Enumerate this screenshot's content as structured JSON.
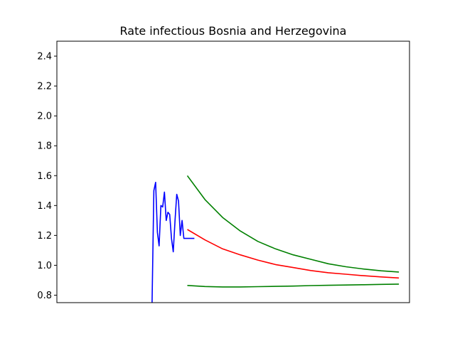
{
  "chart_data": {
    "type": "line",
    "title": "Rate infectious Bosnia and Herzegovina",
    "xlabel": "",
    "ylabel": "",
    "xlim": [
      0,
      100
    ],
    "ylim": [
      0.75,
      2.5
    ],
    "y_ticks": [
      0.8,
      1.0,
      1.2,
      1.4,
      1.6,
      1.8,
      2.0,
      2.2,
      2.4
    ],
    "y_tick_labels": [
      "0.8",
      "1.0",
      "1.2",
      "1.4",
      "1.6",
      "1.8",
      "2.0",
      "2.2",
      "2.4"
    ],
    "x_ticks_visible": false,
    "grid": false,
    "series": [
      {
        "color": "#0000ff",
        "x": [
          27.0,
          27.5,
          28.0,
          28.5,
          29.0,
          29.5,
          30.0,
          30.5,
          31.0,
          31.5,
          32.0,
          32.5,
          33.0,
          33.5,
          34.0,
          34.5,
          35.0,
          35.5,
          36.0,
          36.5,
          37.0,
          37.5,
          38.0,
          38.5,
          39.0
        ],
        "y": [
          0.75,
          1.5,
          1.555,
          1.22,
          1.13,
          1.4,
          1.39,
          1.49,
          1.3,
          1.355,
          1.34,
          1.18,
          1.09,
          1.3,
          1.475,
          1.43,
          1.2,
          1.3,
          1.18,
          1.18,
          1.18,
          1.18,
          1.18,
          1.18,
          1.18
        ]
      },
      {
        "color": "#ff0000",
        "x": [
          37.0,
          42.0,
          47.0,
          52.0,
          57.0,
          62.0,
          67.0,
          72.0,
          77.0,
          82.0,
          87.0,
          92.0,
          97.0
        ],
        "y": [
          1.24,
          1.17,
          1.11,
          1.07,
          1.035,
          1.005,
          0.985,
          0.965,
          0.95,
          0.94,
          0.93,
          0.922,
          0.915
        ]
      },
      {
        "color": "#008000",
        "x": [
          37.0,
          42.0,
          47.0,
          52.0,
          57.0,
          62.0,
          67.0,
          72.0,
          77.0,
          82.0,
          87.0,
          92.0,
          97.0
        ],
        "y": [
          1.6,
          1.44,
          1.32,
          1.23,
          1.16,
          1.11,
          1.07,
          1.04,
          1.01,
          0.99,
          0.975,
          0.963,
          0.955
        ]
      },
      {
        "color": "#008000",
        "x": [
          37.0,
          42.0,
          47.0,
          52.0,
          57.0,
          62.0,
          67.0,
          72.0,
          77.0,
          82.0,
          87.0,
          92.0,
          97.0
        ],
        "y": [
          0.865,
          0.858,
          0.855,
          0.855,
          0.857,
          0.859,
          0.861,
          0.864,
          0.866,
          0.868,
          0.87,
          0.872,
          0.874
        ]
      }
    ]
  }
}
